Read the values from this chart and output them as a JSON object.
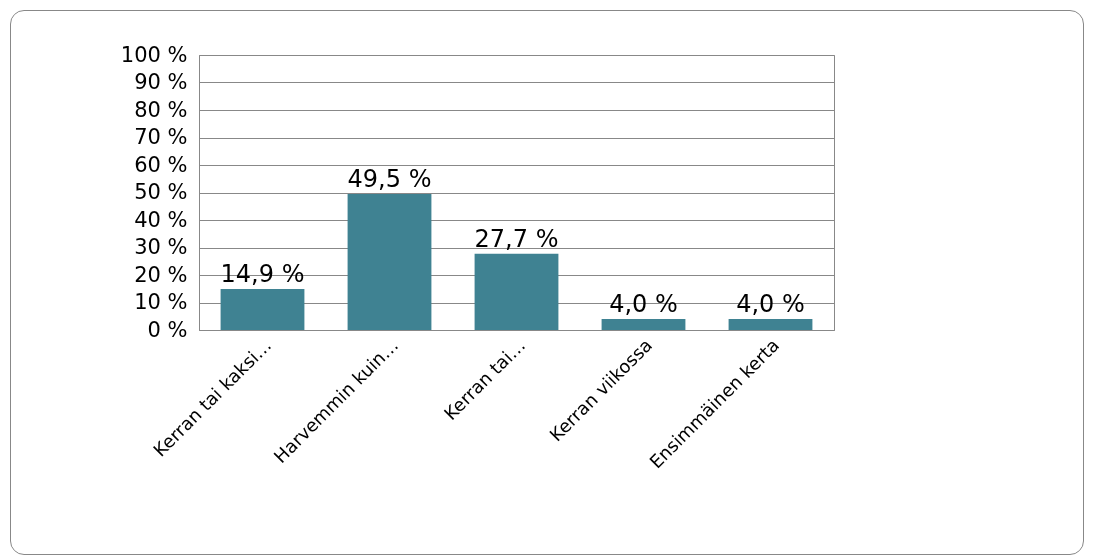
{
  "chart_data": {
    "type": "bar",
    "categories": [
      "Kerran tai kaksi…",
      "Harvemmin kuin…",
      "Kerran tai…",
      "Kerran viikossa",
      "Ensimmäinen kerta"
    ],
    "values": [
      14.9,
      49.5,
      27.7,
      4.0,
      4.0
    ],
    "value_labels": [
      "14,9 %",
      "49,5 %",
      "27,7 %",
      "4,0 %",
      "4,0 %"
    ],
    "color": "#3f8292",
    "ylim": [
      0,
      100
    ],
    "yticks": [
      {
        "value": 0,
        "label": "0 %"
      },
      {
        "value": 10,
        "label": "10 %"
      },
      {
        "value": 20,
        "label": "20 %"
      },
      {
        "value": 30,
        "label": "30 %"
      },
      {
        "value": 40,
        "label": "40 %"
      },
      {
        "value": 50,
        "label": "50 %"
      },
      {
        "value": 60,
        "label": "60 %"
      },
      {
        "value": 70,
        "label": "70 %"
      },
      {
        "value": 80,
        "label": "80 %"
      },
      {
        "value": 90,
        "label": "90 %"
      },
      {
        "value": 100,
        "label": "100 %"
      }
    ],
    "grid": "y"
  }
}
